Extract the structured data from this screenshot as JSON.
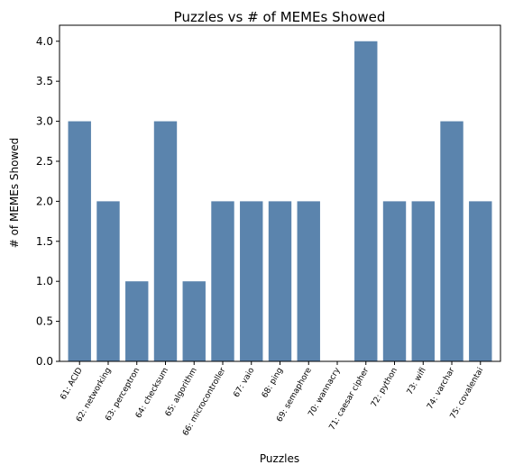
{
  "chart_data": {
    "type": "bar",
    "title": "Puzzles vs # of MEMEs Showed",
    "xlabel": "Puzzles",
    "ylabel": "# of MEMEs Showed",
    "categories": [
      "61: ACID",
      "62: networking",
      "63: perceptron",
      "64: checksum",
      "65: algorithm",
      "66: microcontroller",
      "67: vaio",
      "68: ping",
      "69: semaphore",
      "70: wannacry",
      "71: caesar cipher",
      "72: python",
      "73: wifi",
      "74: varchar",
      "75: covalentai"
    ],
    "values": [
      3,
      2,
      1,
      3,
      1,
      2,
      2,
      2,
      2,
      0,
      4,
      2,
      2,
      3,
      2
    ],
    "ylim": [
      0,
      4.2
    ],
    "yticks": [
      "0.0",
      "0.5",
      "1.0",
      "1.5",
      "2.0",
      "2.5",
      "3.0",
      "3.5",
      "4.0"
    ],
    "bar_color": "#5b84ad",
    "grid": false,
    "legend": "none"
  }
}
